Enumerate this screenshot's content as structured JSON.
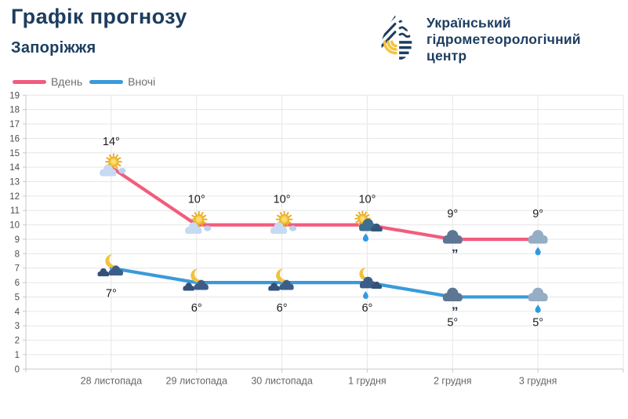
{
  "header": {
    "title": "Графік прогнозу",
    "city": "Запоріжжя"
  },
  "logo": {
    "lines": [
      "Український",
      "гідрометеорологічний",
      "центр"
    ],
    "navy": "#1d3d5f",
    "yellow": "#f5c23c"
  },
  "legend": {
    "items": [
      {
        "label": "Вдень",
        "color": "#f25c7d"
      },
      {
        "label": "Вночі",
        "color": "#3a9ad9"
      }
    ]
  },
  "chart_data": {
    "type": "line",
    "title": "Графік прогнозу — Запоріжжя",
    "categories": [
      "28 листопада",
      "29 листопада",
      "30 листопада",
      "1 грудня",
      "2 грудня",
      "3 грудня"
    ],
    "series": [
      {
        "name": "Вдень",
        "color": "#f25c7d",
        "values": [
          14,
          10,
          10,
          10,
          9,
          9
        ],
        "point_labels": [
          "14°",
          "10°",
          "10°",
          "10°",
          "9°",
          "9°"
        ],
        "icons": [
          "sun-cloud",
          "sun-cloud",
          "sun-cloud",
          "sun-cloud-rain",
          "cloud-drizzle",
          "cloud-rain"
        ],
        "label_position": "above"
      },
      {
        "name": "Вночі",
        "color": "#3a9ad9",
        "values": [
          7,
          6,
          6,
          6,
          5,
          5
        ],
        "point_labels": [
          "7°",
          "6°",
          "6°",
          "6°",
          "5°",
          "5°"
        ],
        "icons": [
          "moon-cloud",
          "moon-cloud",
          "moon-cloud",
          "moon-cloud-rain",
          "cloud-drizzle",
          "cloud-rain"
        ],
        "label_position": "below"
      }
    ],
    "ylim": [
      0,
      19
    ],
    "ytick_step": 1,
    "yticks": [
      0,
      1,
      2,
      3,
      4,
      5,
      6,
      7,
      8,
      9,
      10,
      11,
      12,
      13,
      14,
      15,
      16,
      17,
      18,
      19
    ],
    "grid": true,
    "legend_position": "top-left"
  },
  "colors": {
    "title": "#1d3d5f",
    "grid": "#e6e6e6",
    "axis": "#c9c9c9",
    "ytick_text": "#4d4d4d",
    "xtick_text": "#666666",
    "point_label": "#1a1a1a",
    "legend_text": "#6f6f6f",
    "rain_drop": "#2e9ae0",
    "sun": "#f7c93f",
    "moon": "#f2c23e",
    "day_cloud_light": "#c5daf3",
    "night_cloud_dark": "#3c5d88"
  }
}
